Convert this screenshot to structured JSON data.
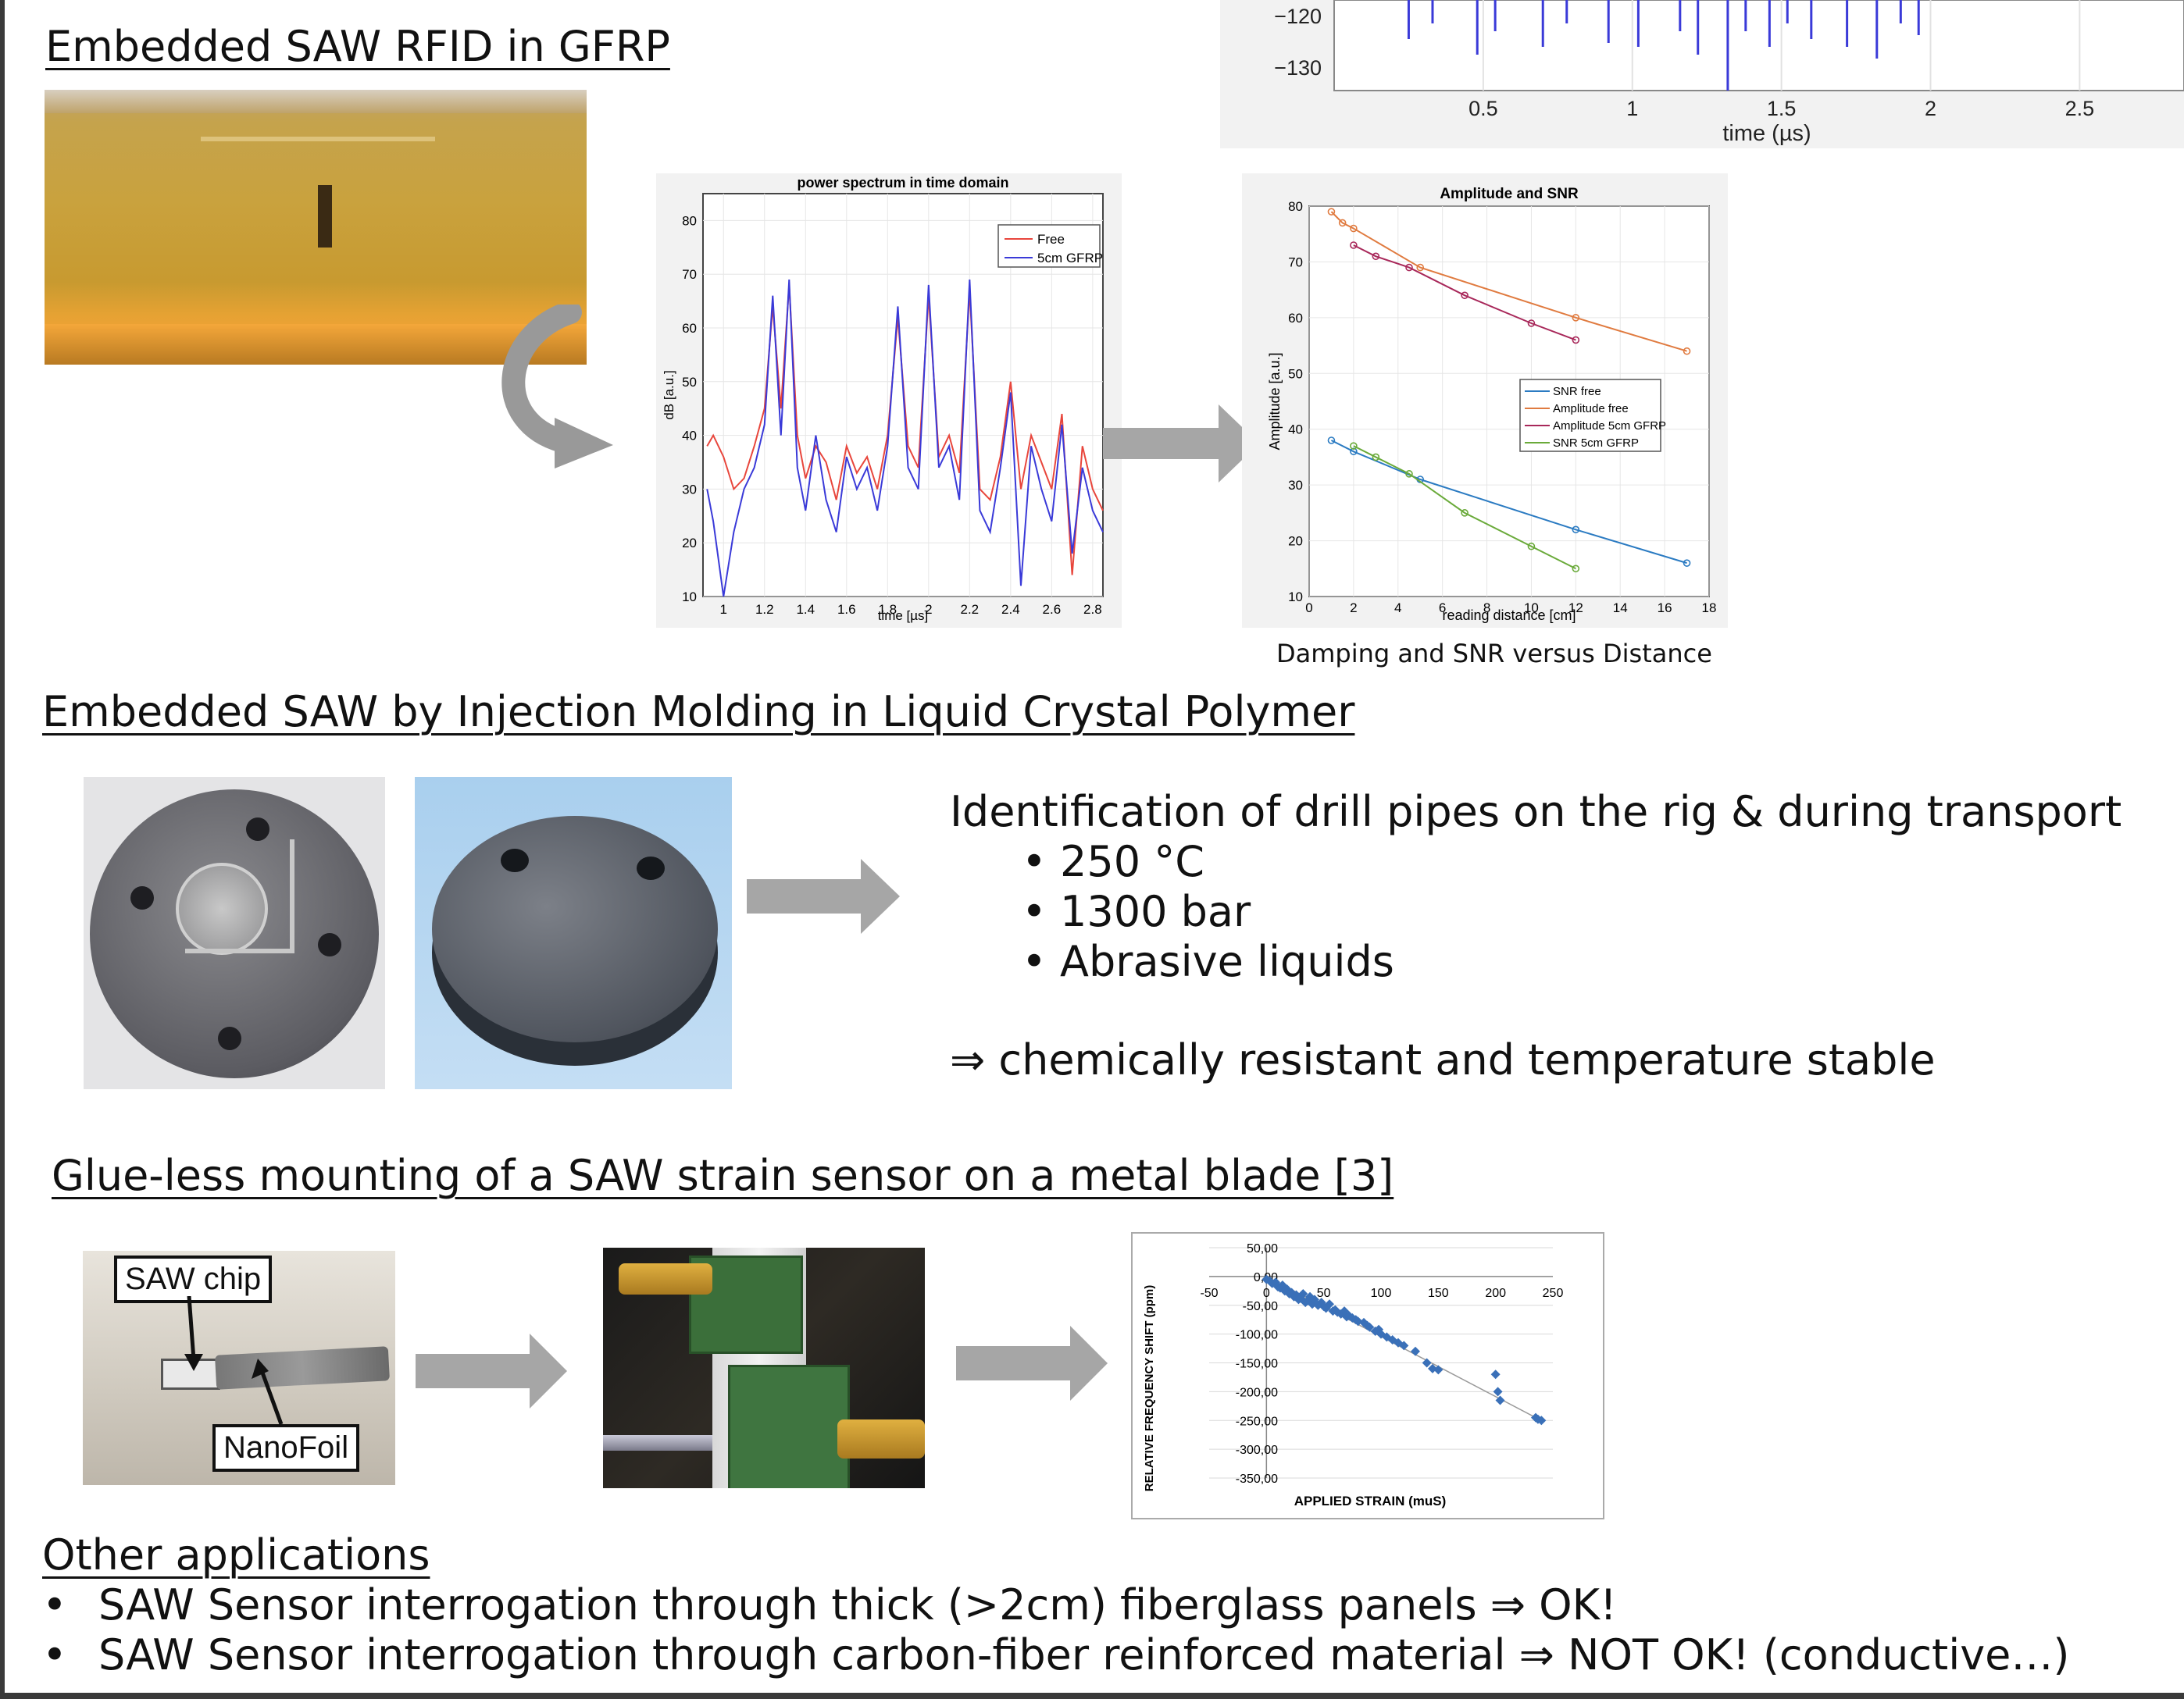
{
  "sections": {
    "gfrp": {
      "title": "Embedded SAW RFID in GFRP"
    },
    "lcp": {
      "title": "Embedded SAW by Injection Molding in Liquid Crystal Polymer",
      "intro": "Identification of drill pipes on the rig & during transport",
      "bullets": [
        "250 °C",
        "1300 bar",
        "Abrasive liquids"
      ],
      "conclusion": "⇒ chemically resistant and temperature stable"
    },
    "glueless": {
      "title": "Glue-less mounting of a SAW strain sensor on a metal blade [3]",
      "label_chip": "SAW chip",
      "label_foil": "NanoFoil"
    },
    "other": {
      "title": "Other applications",
      "items": [
        "SAW Sensor interrogation through thick (>2cm) fiberglass panels ⇒ OK!",
        "SAW Sensor interrogation through carbon-fiber reinforced material ⇒ NOT OK! (conductive…)"
      ]
    }
  },
  "caption_damping": "Damping and SNR versus Distance",
  "colors": {
    "free": "#e8463c",
    "gfrp": "#3a3ad8",
    "snr_free": "#2b7bc2",
    "amp_free": "#e07b40",
    "amp_gfrp": "#a8285a",
    "snr_gfrp": "#6aaa3a",
    "strain": "#3a70b8",
    "arrow": "#a6a6a6"
  },
  "chart_data": [
    {
      "type": "line",
      "xlabel": "time (µs)",
      "xticks": [
        0.5,
        1,
        1.5,
        2,
        2.5
      ],
      "yticks": [
        -120,
        -130
      ],
      "series": [
        {
          "values": []
        }
      ]
    },
    {
      "type": "line",
      "title": "power spectrum in time domain",
      "xlabel": "time [µs]",
      "ylabel": "dB [a.u.]",
      "xlim": [
        0.9,
        2.85
      ],
      "ylim": [
        10,
        85
      ],
      "xticks": [
        1,
        1.2,
        1.4,
        1.6,
        1.8,
        2,
        2.2,
        2.4,
        2.6,
        2.8
      ],
      "yticks": [
        10,
        20,
        30,
        40,
        50,
        60,
        70,
        80
      ],
      "legend": "top-right",
      "series": [
        {
          "name": "Free",
          "x": [
            0.92,
            0.95,
            1.0,
            1.05,
            1.1,
            1.15,
            1.2,
            1.24,
            1.28,
            1.32,
            1.36,
            1.4,
            1.45,
            1.5,
            1.55,
            1.6,
            1.65,
            1.7,
            1.75,
            1.8,
            1.85,
            1.9,
            1.95,
            2.0,
            2.05,
            2.1,
            2.15,
            2.2,
            2.25,
            2.3,
            2.35,
            2.4,
            2.45,
            2.5,
            2.55,
            2.6,
            2.65,
            2.7,
            2.75,
            2.8,
            2.85
          ],
          "y": [
            38,
            40,
            36,
            30,
            32,
            38,
            45,
            64,
            45,
            68,
            40,
            32,
            38,
            35,
            28,
            38,
            33,
            36,
            30,
            40,
            62,
            38,
            34,
            66,
            36,
            40,
            33,
            67,
            30,
            28,
            36,
            50,
            30,
            40,
            35,
            30,
            44,
            14,
            38,
            30,
            26
          ]
        },
        {
          "name": "5cm GFRP",
          "x": [
            0.92,
            0.95,
            1.0,
            1.05,
            1.1,
            1.15,
            1.2,
            1.24,
            1.28,
            1.32,
            1.36,
            1.4,
            1.45,
            1.5,
            1.55,
            1.6,
            1.65,
            1.7,
            1.75,
            1.8,
            1.85,
            1.9,
            1.95,
            2.0,
            2.05,
            2.1,
            2.15,
            2.2,
            2.25,
            2.3,
            2.35,
            2.4,
            2.45,
            2.5,
            2.55,
            2.6,
            2.65,
            2.7,
            2.75,
            2.8,
            2.85
          ],
          "y": [
            30,
            24,
            10,
            22,
            30,
            34,
            42,
            66,
            40,
            69,
            34,
            26,
            40,
            28,
            22,
            36,
            30,
            34,
            26,
            38,
            64,
            34,
            30,
            68,
            34,
            38,
            28,
            69,
            26,
            22,
            34,
            48,
            12,
            38,
            30,
            24,
            42,
            18,
            34,
            26,
            22
          ]
        }
      ]
    },
    {
      "type": "line",
      "title": "Amplitude and SNR",
      "xlabel": "reading distance [cm]",
      "ylabel": "Amplitude [a.u.]",
      "xlim": [
        0,
        18
      ],
      "ylim": [
        10,
        80
      ],
      "xticks": [
        0,
        2,
        4,
        6,
        8,
        10,
        12,
        14,
        16,
        18
      ],
      "yticks": [
        10,
        20,
        30,
        40,
        50,
        60,
        70,
        80
      ],
      "legend": "center-right",
      "series": [
        {
          "name": "SNR free",
          "x": [
            1,
            2,
            5,
            12,
            17
          ],
          "y": [
            38,
            36,
            31,
            22,
            16
          ]
        },
        {
          "name": "Amplitude free",
          "x": [
            1,
            1.5,
            2,
            5,
            12,
            17
          ],
          "y": [
            79,
            77,
            76,
            69,
            60,
            54
          ]
        },
        {
          "name": "Amplitude 5cm GFRP",
          "x": [
            2,
            3,
            4.5,
            7,
            10,
            12
          ],
          "y": [
            73,
            71,
            69,
            64,
            59,
            56
          ]
        },
        {
          "name": "SNR 5cm GFRP",
          "x": [
            2,
            3,
            4.5,
            7,
            10,
            12
          ],
          "y": [
            37,
            35,
            32,
            25,
            19,
            15
          ]
        }
      ]
    },
    {
      "type": "scatter",
      "xlabel": "APPLIED STRAIN (muS)",
      "ylabel": "RELATIVE FREQUENCY SHIFT (ppm)",
      "xlim": [
        -50,
        250
      ],
      "ylim": [
        -350,
        50
      ],
      "xticks": [
        -50,
        0,
        50,
        100,
        150,
        200,
        250
      ],
      "yticks": [
        "50,00",
        "0,00",
        "-50,00",
        "-100,00",
        "-150,00",
        "-200,00",
        "-250,00",
        "-300,00",
        "-350,00"
      ],
      "trendline": {
        "x": [
          0,
          235
        ],
        "y": [
          0,
          -245
        ]
      },
      "series": [
        {
          "x": [
            0,
            3,
            5,
            8,
            10,
            12,
            14,
            16,
            18,
            20,
            22,
            24,
            26,
            28,
            30,
            32,
            34,
            36,
            38,
            40,
            42,
            45,
            48,
            50,
            52,
            55,
            58,
            60,
            62,
            65,
            68,
            70,
            72,
            75,
            78,
            80,
            85,
            88,
            90,
            95,
            98,
            100,
            105,
            110,
            115,
            120,
            130,
            140,
            145,
            150,
            200,
            202,
            204,
            235,
            237,
            240
          ],
          "y": [
            -5,
            -8,
            -12,
            -10,
            -18,
            -20,
            -15,
            -25,
            -22,
            -30,
            -28,
            -35,
            -32,
            -40,
            -38,
            -30,
            -45,
            -42,
            -35,
            -48,
            -40,
            -50,
            -45,
            -52,
            -55,
            -48,
            -60,
            -58,
            -62,
            -65,
            -60,
            -70,
            -68,
            -72,
            -75,
            -78,
            -80,
            -85,
            -88,
            -95,
            -92,
            -100,
            -105,
            -110,
            -115,
            -120,
            -130,
            -150,
            -160,
            -162,
            -170,
            -200,
            -215,
            -245,
            -248,
            -250
          ]
        }
      ]
    }
  ]
}
